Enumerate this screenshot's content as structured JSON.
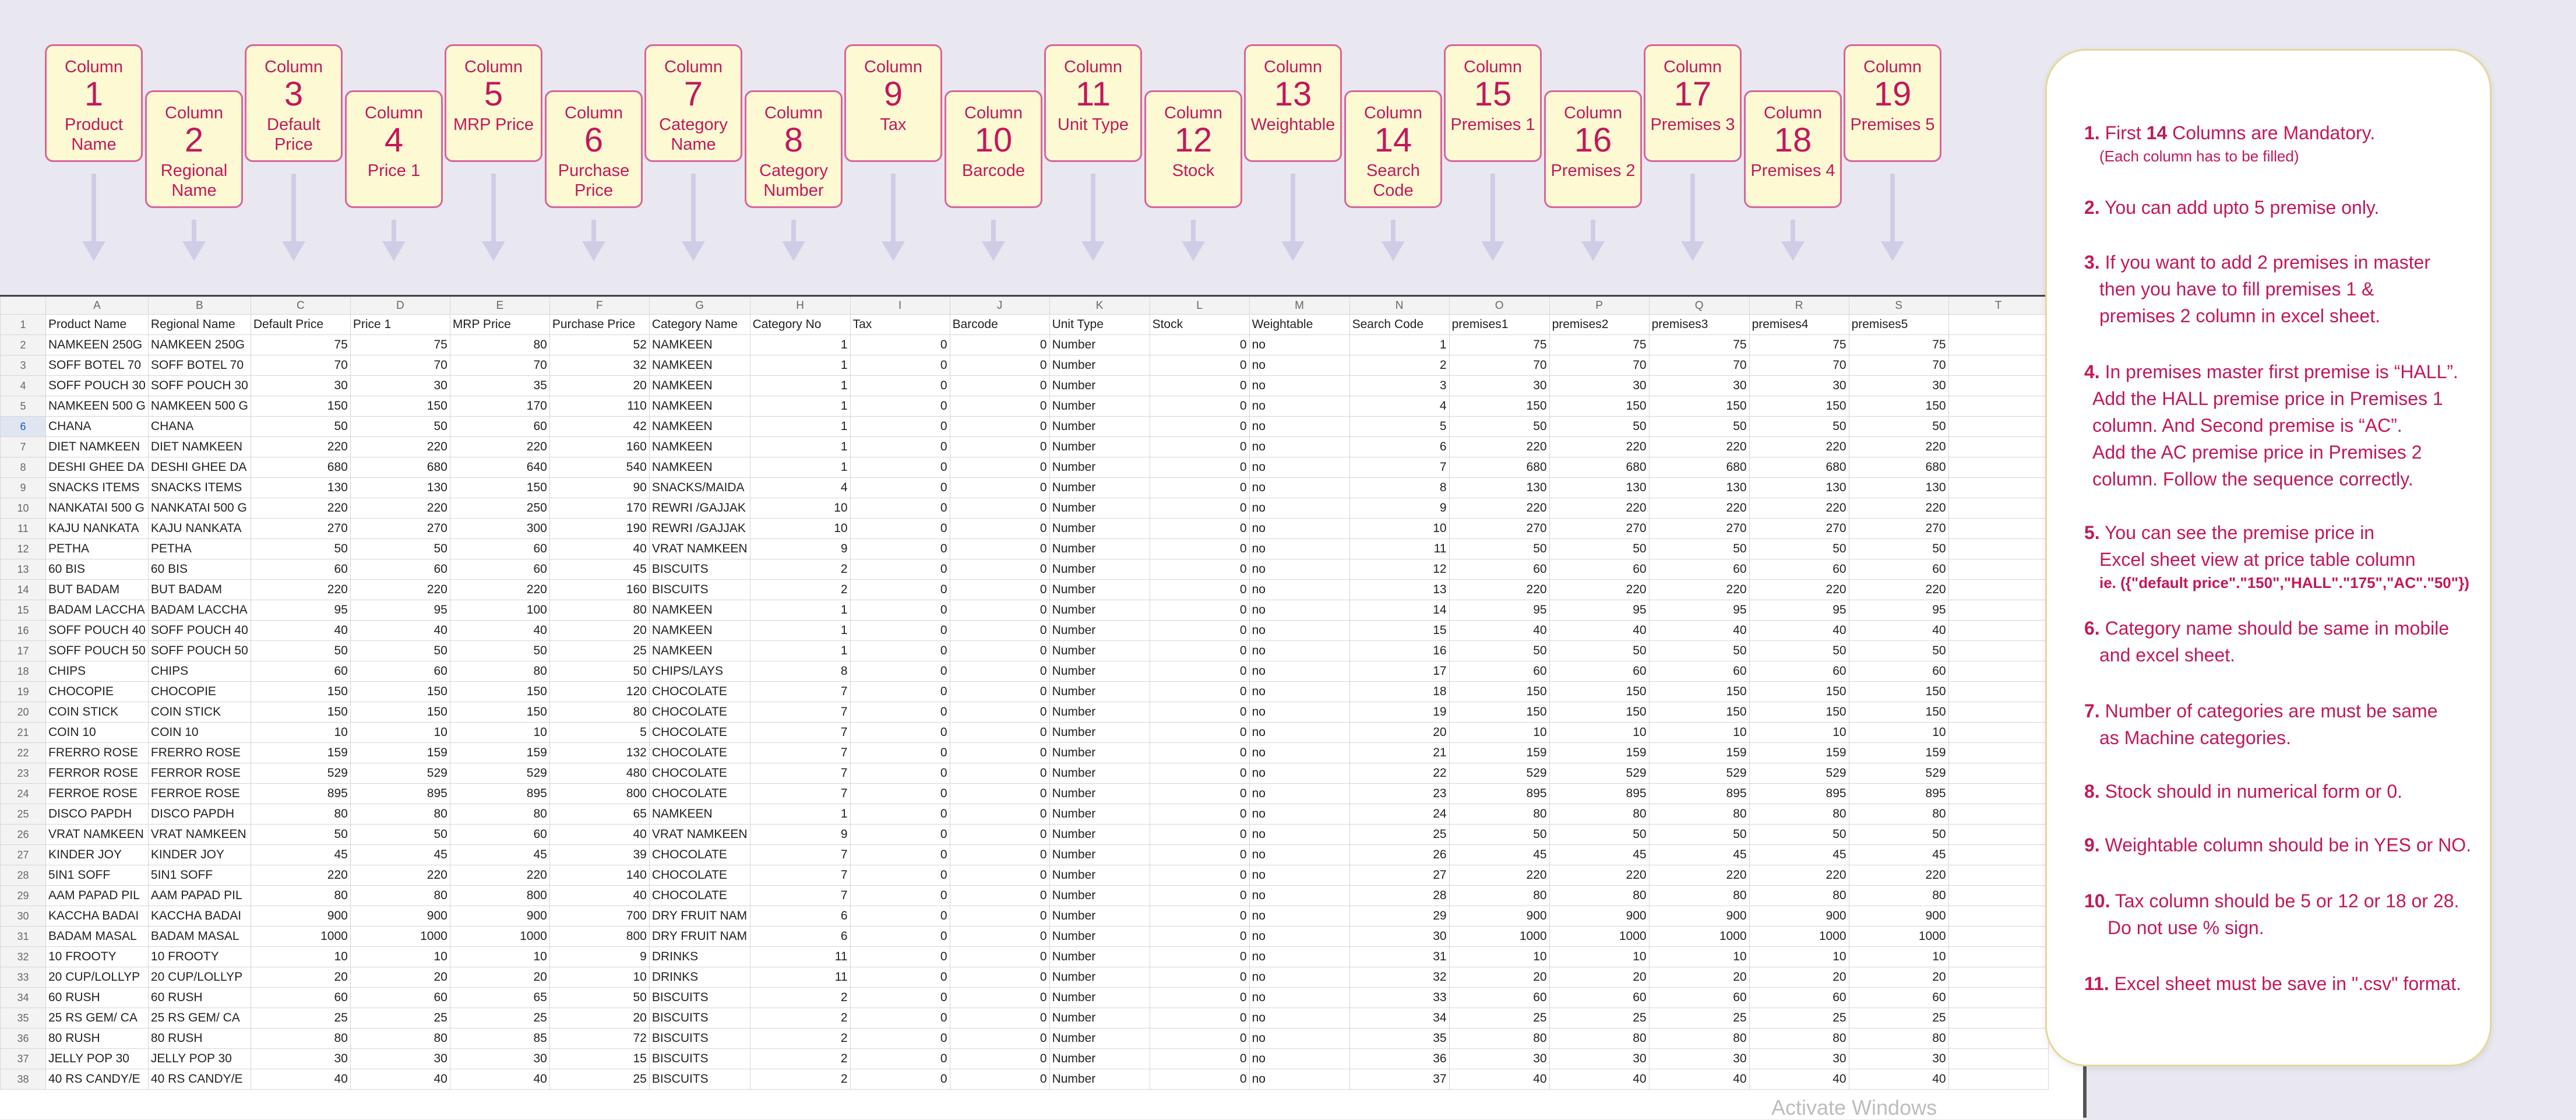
{
  "column_word": "Column",
  "columns": [
    {
      "num": "1",
      "label": "Product Name"
    },
    {
      "num": "2",
      "label": "Regional Name"
    },
    {
      "num": "3",
      "label": "Default Price"
    },
    {
      "num": "4",
      "label": "Price 1"
    },
    {
      "num": "5",
      "label": "MRP Price"
    },
    {
      "num": "6",
      "label": "Purchase Price"
    },
    {
      "num": "7",
      "label": "Category Name"
    },
    {
      "num": "8",
      "label": "Category Number"
    },
    {
      "num": "9",
      "label": "Tax"
    },
    {
      "num": "10",
      "label": "Barcode"
    },
    {
      "num": "11",
      "label": "Unit Type"
    },
    {
      "num": "12",
      "label": "Stock"
    },
    {
      "num": "13",
      "label": "Weightable"
    },
    {
      "num": "14",
      "label": "Search Code"
    },
    {
      "num": "15",
      "label": "Premises 1"
    },
    {
      "num": "16",
      "label": "Premises 2"
    },
    {
      "num": "17",
      "label": "Premises 3"
    },
    {
      "num": "18",
      "label": "Premises 4"
    },
    {
      "num": "19",
      "label": "Premises 5"
    }
  ],
  "sheet": {
    "col_letters": [
      "A",
      "B",
      "C",
      "D",
      "E",
      "F",
      "G",
      "H",
      "I",
      "J",
      "K",
      "L",
      "M",
      "N",
      "O",
      "P",
      "Q",
      "R",
      "S",
      "T"
    ],
    "header": [
      "Product Name",
      "Regional Name",
      "Default Price",
      "Price 1",
      "MRP Price",
      "Purchase Price",
      "Category Name",
      "Category No",
      "Tax",
      "Barcode",
      "Unit Type",
      "Stock",
      "Weightable",
      "Search Code",
      "premises1",
      "premises2",
      "premises3",
      "premises4",
      "premises5",
      ""
    ],
    "selected_row": "6",
    "rows": [
      [
        "NAMKEEN 250G",
        "NAMKEEN 250G",
        "75",
        "75",
        "80",
        "52",
        "NAMKEEN",
        "1",
        "0",
        "0",
        "Number",
        "0",
        "no",
        "1",
        "75",
        "75",
        "75",
        "75",
        "75"
      ],
      [
        "SOFF BOTEL 70",
        "SOFF BOTEL 70",
        "70",
        "70",
        "70",
        "32",
        "NAMKEEN",
        "1",
        "0",
        "0",
        "Number",
        "0",
        "no",
        "2",
        "70",
        "70",
        "70",
        "70",
        "70"
      ],
      [
        "SOFF POUCH 30",
        "SOFF POUCH 30",
        "30",
        "30",
        "35",
        "20",
        "NAMKEEN",
        "1",
        "0",
        "0",
        "Number",
        "0",
        "no",
        "3",
        "30",
        "30",
        "30",
        "30",
        "30"
      ],
      [
        "NAMKEEN 500 G",
        "NAMKEEN 500 G",
        "150",
        "150",
        "170",
        "110",
        "NAMKEEN",
        "1",
        "0",
        "0",
        "Number",
        "0",
        "no",
        "4",
        "150",
        "150",
        "150",
        "150",
        "150"
      ],
      [
        "CHANA",
        "CHANA",
        "50",
        "50",
        "60",
        "42",
        "NAMKEEN",
        "1",
        "0",
        "0",
        "Number",
        "0",
        "no",
        "5",
        "50",
        "50",
        "50",
        "50",
        "50"
      ],
      [
        "DIET NAMKEEN",
        "DIET NAMKEEN",
        "220",
        "220",
        "220",
        "160",
        "NAMKEEN",
        "1",
        "0",
        "0",
        "Number",
        "0",
        "no",
        "6",
        "220",
        "220",
        "220",
        "220",
        "220"
      ],
      [
        "DESHI GHEE DA",
        "DESHI GHEE DA",
        "680",
        "680",
        "640",
        "540",
        "NAMKEEN",
        "1",
        "0",
        "0",
        "Number",
        "0",
        "no",
        "7",
        "680",
        "680",
        "680",
        "680",
        "680"
      ],
      [
        "SNACKS ITEMS",
        "SNACKS ITEMS",
        "130",
        "130",
        "150",
        "90",
        "SNACKS/MAIDA",
        "4",
        "0",
        "0",
        "Number",
        "0",
        "no",
        "8",
        "130",
        "130",
        "130",
        "130",
        "130"
      ],
      [
        "NANKATAI 500 G",
        "NANKATAI 500 G",
        "220",
        "220",
        "250",
        "170",
        "REWRI /GAJJAK",
        "10",
        "0",
        "0",
        "Number",
        "0",
        "no",
        "9",
        "220",
        "220",
        "220",
        "220",
        "220"
      ],
      [
        "KAJU NANKATA",
        "KAJU NANKATA",
        "270",
        "270",
        "300",
        "190",
        "REWRI /GAJJAK",
        "10",
        "0",
        "0",
        "Number",
        "0",
        "no",
        "10",
        "270",
        "270",
        "270",
        "270",
        "270"
      ],
      [
        "PETHA",
        "PETHA",
        "50",
        "50",
        "60",
        "40",
        "VRAT NAMKEEN",
        "9",
        "0",
        "0",
        "Number",
        "0",
        "no",
        "11",
        "50",
        "50",
        "50",
        "50",
        "50"
      ],
      [
        "60 BIS",
        "60 BIS",
        "60",
        "60",
        "60",
        "45",
        "BISCUITS",
        "2",
        "0",
        "0",
        "Number",
        "0",
        "no",
        "12",
        "60",
        "60",
        "60",
        "60",
        "60"
      ],
      [
        "BUT BADAM",
        "BUT BADAM",
        "220",
        "220",
        "220",
        "160",
        "BISCUITS",
        "2",
        "0",
        "0",
        "Number",
        "0",
        "no",
        "13",
        "220",
        "220",
        "220",
        "220",
        "220"
      ],
      [
        "BADAM LACCHA",
        "BADAM LACCHA",
        "95",
        "95",
        "100",
        "80",
        "NAMKEEN",
        "1",
        "0",
        "0",
        "Number",
        "0",
        "no",
        "14",
        "95",
        "95",
        "95",
        "95",
        "95"
      ],
      [
        "SOFF POUCH 40",
        "SOFF POUCH 40",
        "40",
        "40",
        "40",
        "20",
        "NAMKEEN",
        "1",
        "0",
        "0",
        "Number",
        "0",
        "no",
        "15",
        "40",
        "40",
        "40",
        "40",
        "40"
      ],
      [
        "SOFF POUCH 50",
        "SOFF POUCH 50",
        "50",
        "50",
        "50",
        "25",
        "NAMKEEN",
        "1",
        "0",
        "0",
        "Number",
        "0",
        "no",
        "16",
        "50",
        "50",
        "50",
        "50",
        "50"
      ],
      [
        "CHIPS",
        "CHIPS",
        "60",
        "60",
        "80",
        "50",
        "CHIPS/LAYS",
        "8",
        "0",
        "0",
        "Number",
        "0",
        "no",
        "17",
        "60",
        "60",
        "60",
        "60",
        "60"
      ],
      [
        "CHOCOPIE",
        "CHOCOPIE",
        "150",
        "150",
        "150",
        "120",
        "CHOCOLATE",
        "7",
        "0",
        "0",
        "Number",
        "0",
        "no",
        "18",
        "150",
        "150",
        "150",
        "150",
        "150"
      ],
      [
        "COIN STICK",
        "COIN STICK",
        "150",
        "150",
        "150",
        "80",
        "CHOCOLATE",
        "7",
        "0",
        "0",
        "Number",
        "0",
        "no",
        "19",
        "150",
        "150",
        "150",
        "150",
        "150"
      ],
      [
        "COIN 10",
        "COIN 10",
        "10",
        "10",
        "10",
        "5",
        "CHOCOLATE",
        "7",
        "0",
        "0",
        "Number",
        "0",
        "no",
        "20",
        "10",
        "10",
        "10",
        "10",
        "10"
      ],
      [
        "FRERRO ROSE",
        "FRERRO ROSE",
        "159",
        "159",
        "159",
        "132",
        "CHOCOLATE",
        "7",
        "0",
        "0",
        "Number",
        "0",
        "no",
        "21",
        "159",
        "159",
        "159",
        "159",
        "159"
      ],
      [
        "FERROR ROSE",
        "FERROR ROSE",
        "529",
        "529",
        "529",
        "480",
        "CHOCOLATE",
        "7",
        "0",
        "0",
        "Number",
        "0",
        "no",
        "22",
        "529",
        "529",
        "529",
        "529",
        "529"
      ],
      [
        "FERROE ROSE",
        "FERROE ROSE",
        "895",
        "895",
        "895",
        "800",
        "CHOCOLATE",
        "7",
        "0",
        "0",
        "Number",
        "0",
        "no",
        "23",
        "895",
        "895",
        "895",
        "895",
        "895"
      ],
      [
        "DISCO PAPDH",
        "DISCO PAPDH",
        "80",
        "80",
        "80",
        "65",
        "NAMKEEN",
        "1",
        "0",
        "0",
        "Number",
        "0",
        "no",
        "24",
        "80",
        "80",
        "80",
        "80",
        "80"
      ],
      [
        "VRAT NAMKEEN",
        "VRAT NAMKEEN",
        "50",
        "50",
        "60",
        "40",
        "VRAT NAMKEEN",
        "9",
        "0",
        "0",
        "Number",
        "0",
        "no",
        "25",
        "50",
        "50",
        "50",
        "50",
        "50"
      ],
      [
        "KINDER JOY",
        "KINDER JOY",
        "45",
        "45",
        "45",
        "39",
        "CHOCOLATE",
        "7",
        "0",
        "0",
        "Number",
        "0",
        "no",
        "26",
        "45",
        "45",
        "45",
        "45",
        "45"
      ],
      [
        "5IN1 SOFF",
        "5IN1 SOFF",
        "220",
        "220",
        "220",
        "140",
        "CHOCOLATE",
        "7",
        "0",
        "0",
        "Number",
        "0",
        "no",
        "27",
        "220",
        "220",
        "220",
        "220",
        "220"
      ],
      [
        "AAM PAPAD PIL",
        "AAM PAPAD PIL",
        "80",
        "80",
        "800",
        "40",
        "CHOCOLATE",
        "7",
        "0",
        "0",
        "Number",
        "0",
        "no",
        "28",
        "80",
        "80",
        "80",
        "80",
        "80"
      ],
      [
        "KACCHA BADAI",
        "KACCHA BADAI",
        "900",
        "900",
        "900",
        "700",
        "DRY FRUIT NAM",
        "6",
        "0",
        "0",
        "Number",
        "0",
        "no",
        "29",
        "900",
        "900",
        "900",
        "900",
        "900"
      ],
      [
        "BADAM MASAL",
        "BADAM MASAL",
        "1000",
        "1000",
        "1000",
        "800",
        "DRY FRUIT NAM",
        "6",
        "0",
        "0",
        "Number",
        "0",
        "no",
        "30",
        "1000",
        "1000",
        "1000",
        "1000",
        "1000"
      ],
      [
        "10 FROOTY",
        "10 FROOTY",
        "10",
        "10",
        "10",
        "9",
        "DRINKS",
        "11",
        "0",
        "0",
        "Number",
        "0",
        "no",
        "31",
        "10",
        "10",
        "10",
        "10",
        "10"
      ],
      [
        "20 CUP/LOLLYP",
        "20 CUP/LOLLYP",
        "20",
        "20",
        "20",
        "10",
        "DRINKS",
        "11",
        "0",
        "0",
        "Number",
        "0",
        "no",
        "32",
        "20",
        "20",
        "20",
        "20",
        "20"
      ],
      [
        "60 RUSH",
        "60 RUSH",
        "60",
        "60",
        "65",
        "50",
        "BISCUITS",
        "2",
        "0",
        "0",
        "Number",
        "0",
        "no",
        "33",
        "60",
        "60",
        "60",
        "60",
        "60"
      ],
      [
        "25 RS GEM/ CA",
        "25 RS GEM/ CA",
        "25",
        "25",
        "25",
        "20",
        "BISCUITS",
        "2",
        "0",
        "0",
        "Number",
        "0",
        "no",
        "34",
        "25",
        "25",
        "25",
        "25",
        "25"
      ],
      [
        "80 RUSH",
        "80 RUSH",
        "80",
        "80",
        "85",
        "72",
        "BISCUITS",
        "2",
        "0",
        "0",
        "Number",
        "0",
        "no",
        "35",
        "80",
        "80",
        "80",
        "80",
        "80"
      ],
      [
        "JELLY POP 30",
        "JELLY POP 30",
        "30",
        "30",
        "30",
        "15",
        "BISCUITS",
        "2",
        "0",
        "0",
        "Number",
        "0",
        "no",
        "36",
        "30",
        "30",
        "30",
        "30",
        "30"
      ],
      [
        "40 RS CANDY/E",
        "40 RS CANDY/E",
        "40",
        "40",
        "40",
        "25",
        "BISCUITS",
        "2",
        "0",
        "0",
        "Number",
        "0",
        "no",
        "37",
        "40",
        "40",
        "40",
        "40",
        "40"
      ]
    ]
  },
  "instructions": {
    "i1": {
      "no": "1.",
      "pre": "First ",
      "bold": "14",
      "post": " Columns are Mandatory.",
      "sub": "(Each column has to be filled)"
    },
    "i2": {
      "no": "2.",
      "text": "You can add upto 5 premise only."
    },
    "i3": {
      "no": "3.",
      "l1": "If you want to add 2 premises in master",
      "l2": "then you have to fill premises 1 &",
      "l3": "premises 2 column in excel sheet."
    },
    "i4": {
      "no": "4.",
      "l1": "In premises master first premise is “HALL”.",
      "l2": "Add the HALL premise price in Premises 1",
      "l3": "column. And Second premise is “AC”.",
      "l4": "Add the AC premise price in Premises 2",
      "l5": "column. Follow the sequence correctly."
    },
    "i5": {
      "no": "5.",
      "l1": "You can see the premise price in",
      "l2": "Excel sheet view at price table column",
      "l3": "ie. ({\"default price\".\"150\",\"HALL\".\"175\",\"AC\".\"50\"})"
    },
    "i6": {
      "no": "6.",
      "l1": "Category name should be same in mobile",
      "l2": "and excel sheet."
    },
    "i7": {
      "no": "7.",
      "l1": "Number of categories are must be same",
      "l2": "as Machine categories."
    },
    "i8": {
      "no": "8.",
      "text": "Stock should in numerical form or 0."
    },
    "i9": {
      "no": "9.",
      "text": "Weightable column should be in YES or NO."
    },
    "i10": {
      "no": "10.",
      "l1": "Tax column should be 5 or 12 or 18 or 28.",
      "l2": "Do not use % sign."
    },
    "i11": {
      "no": "11.",
      "text": "Excel sheet must be save in \".csv\" format."
    }
  },
  "watermark": "Activate Windows",
  "colors": {
    "accent": "#c2185b",
    "box_bg": "#fdf9d3",
    "box_border": "#d9649a",
    "arrow": "#cfcde6"
  }
}
